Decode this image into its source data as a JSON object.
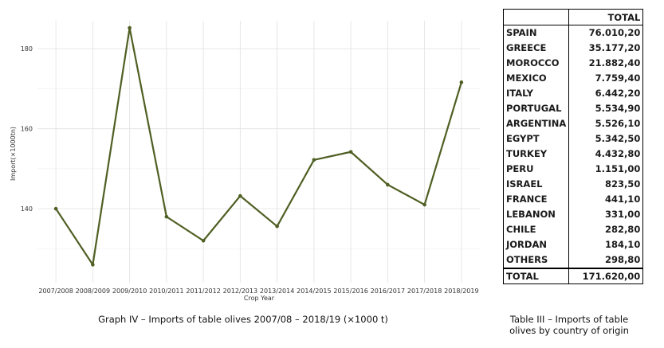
{
  "chart_data": {
    "type": "line",
    "title": "",
    "xlabel": "Crop Year",
    "ylabel": "Import(×1000tn)",
    "categories": [
      "2007/2008",
      "2008/2009",
      "2009/2010",
      "2010/2011",
      "2011/2012",
      "2012/2013",
      "2013/2014",
      "2014/2015",
      "2015/2016",
      "2016/2017",
      "2017/2018",
      "2018/2019"
    ],
    "series": [
      {
        "values": [
          140.0,
          126.0,
          185.2,
          138.0,
          132.0,
          143.2,
          135.6,
          152.2,
          154.2,
          146.0,
          141.0,
          171.6
        ]
      }
    ],
    "ylim": [
      121.5,
      187.0
    ],
    "yticks": [
      140,
      160,
      180
    ],
    "grid": true,
    "line_color": "#4f5f23"
  },
  "captions": {
    "graph": "Graph IV – Imports of table olives 2007/08 – 2018/19 (×1000 t)",
    "table": "Table III – Imports of table olives by country of origin"
  },
  "table": {
    "header": "TOTAL",
    "rows": [
      {
        "country": "SPAIN",
        "value": "76.010,20"
      },
      {
        "country": "GREECE",
        "value": "35.177,20"
      },
      {
        "country": "MOROCCO",
        "value": "21.882,40"
      },
      {
        "country": "MEXICO",
        "value": "7.759,40"
      },
      {
        "country": "ITALY",
        "value": "6.442,20"
      },
      {
        "country": "PORTUGAL",
        "value": "5.534,90"
      },
      {
        "country": "ARGENTINA",
        "value": "5.526,10"
      },
      {
        "country": "EGYPT",
        "value": "5.342,50"
      },
      {
        "country": "TURKEY",
        "value": "4.432,80"
      },
      {
        "country": "PERU",
        "value": "1.151,00"
      },
      {
        "country": "ISRAEL",
        "value": "823,50"
      },
      {
        "country": "FRANCE",
        "value": "441,10"
      },
      {
        "country": "LEBANON",
        "value": "331,00"
      },
      {
        "country": "CHILE",
        "value": "282,80"
      },
      {
        "country": "JORDAN",
        "value": "184,10"
      },
      {
        "country": "OTHERS",
        "value": "298,80"
      }
    ],
    "total_label": "TOTAL",
    "total_value": "171.620,00"
  }
}
